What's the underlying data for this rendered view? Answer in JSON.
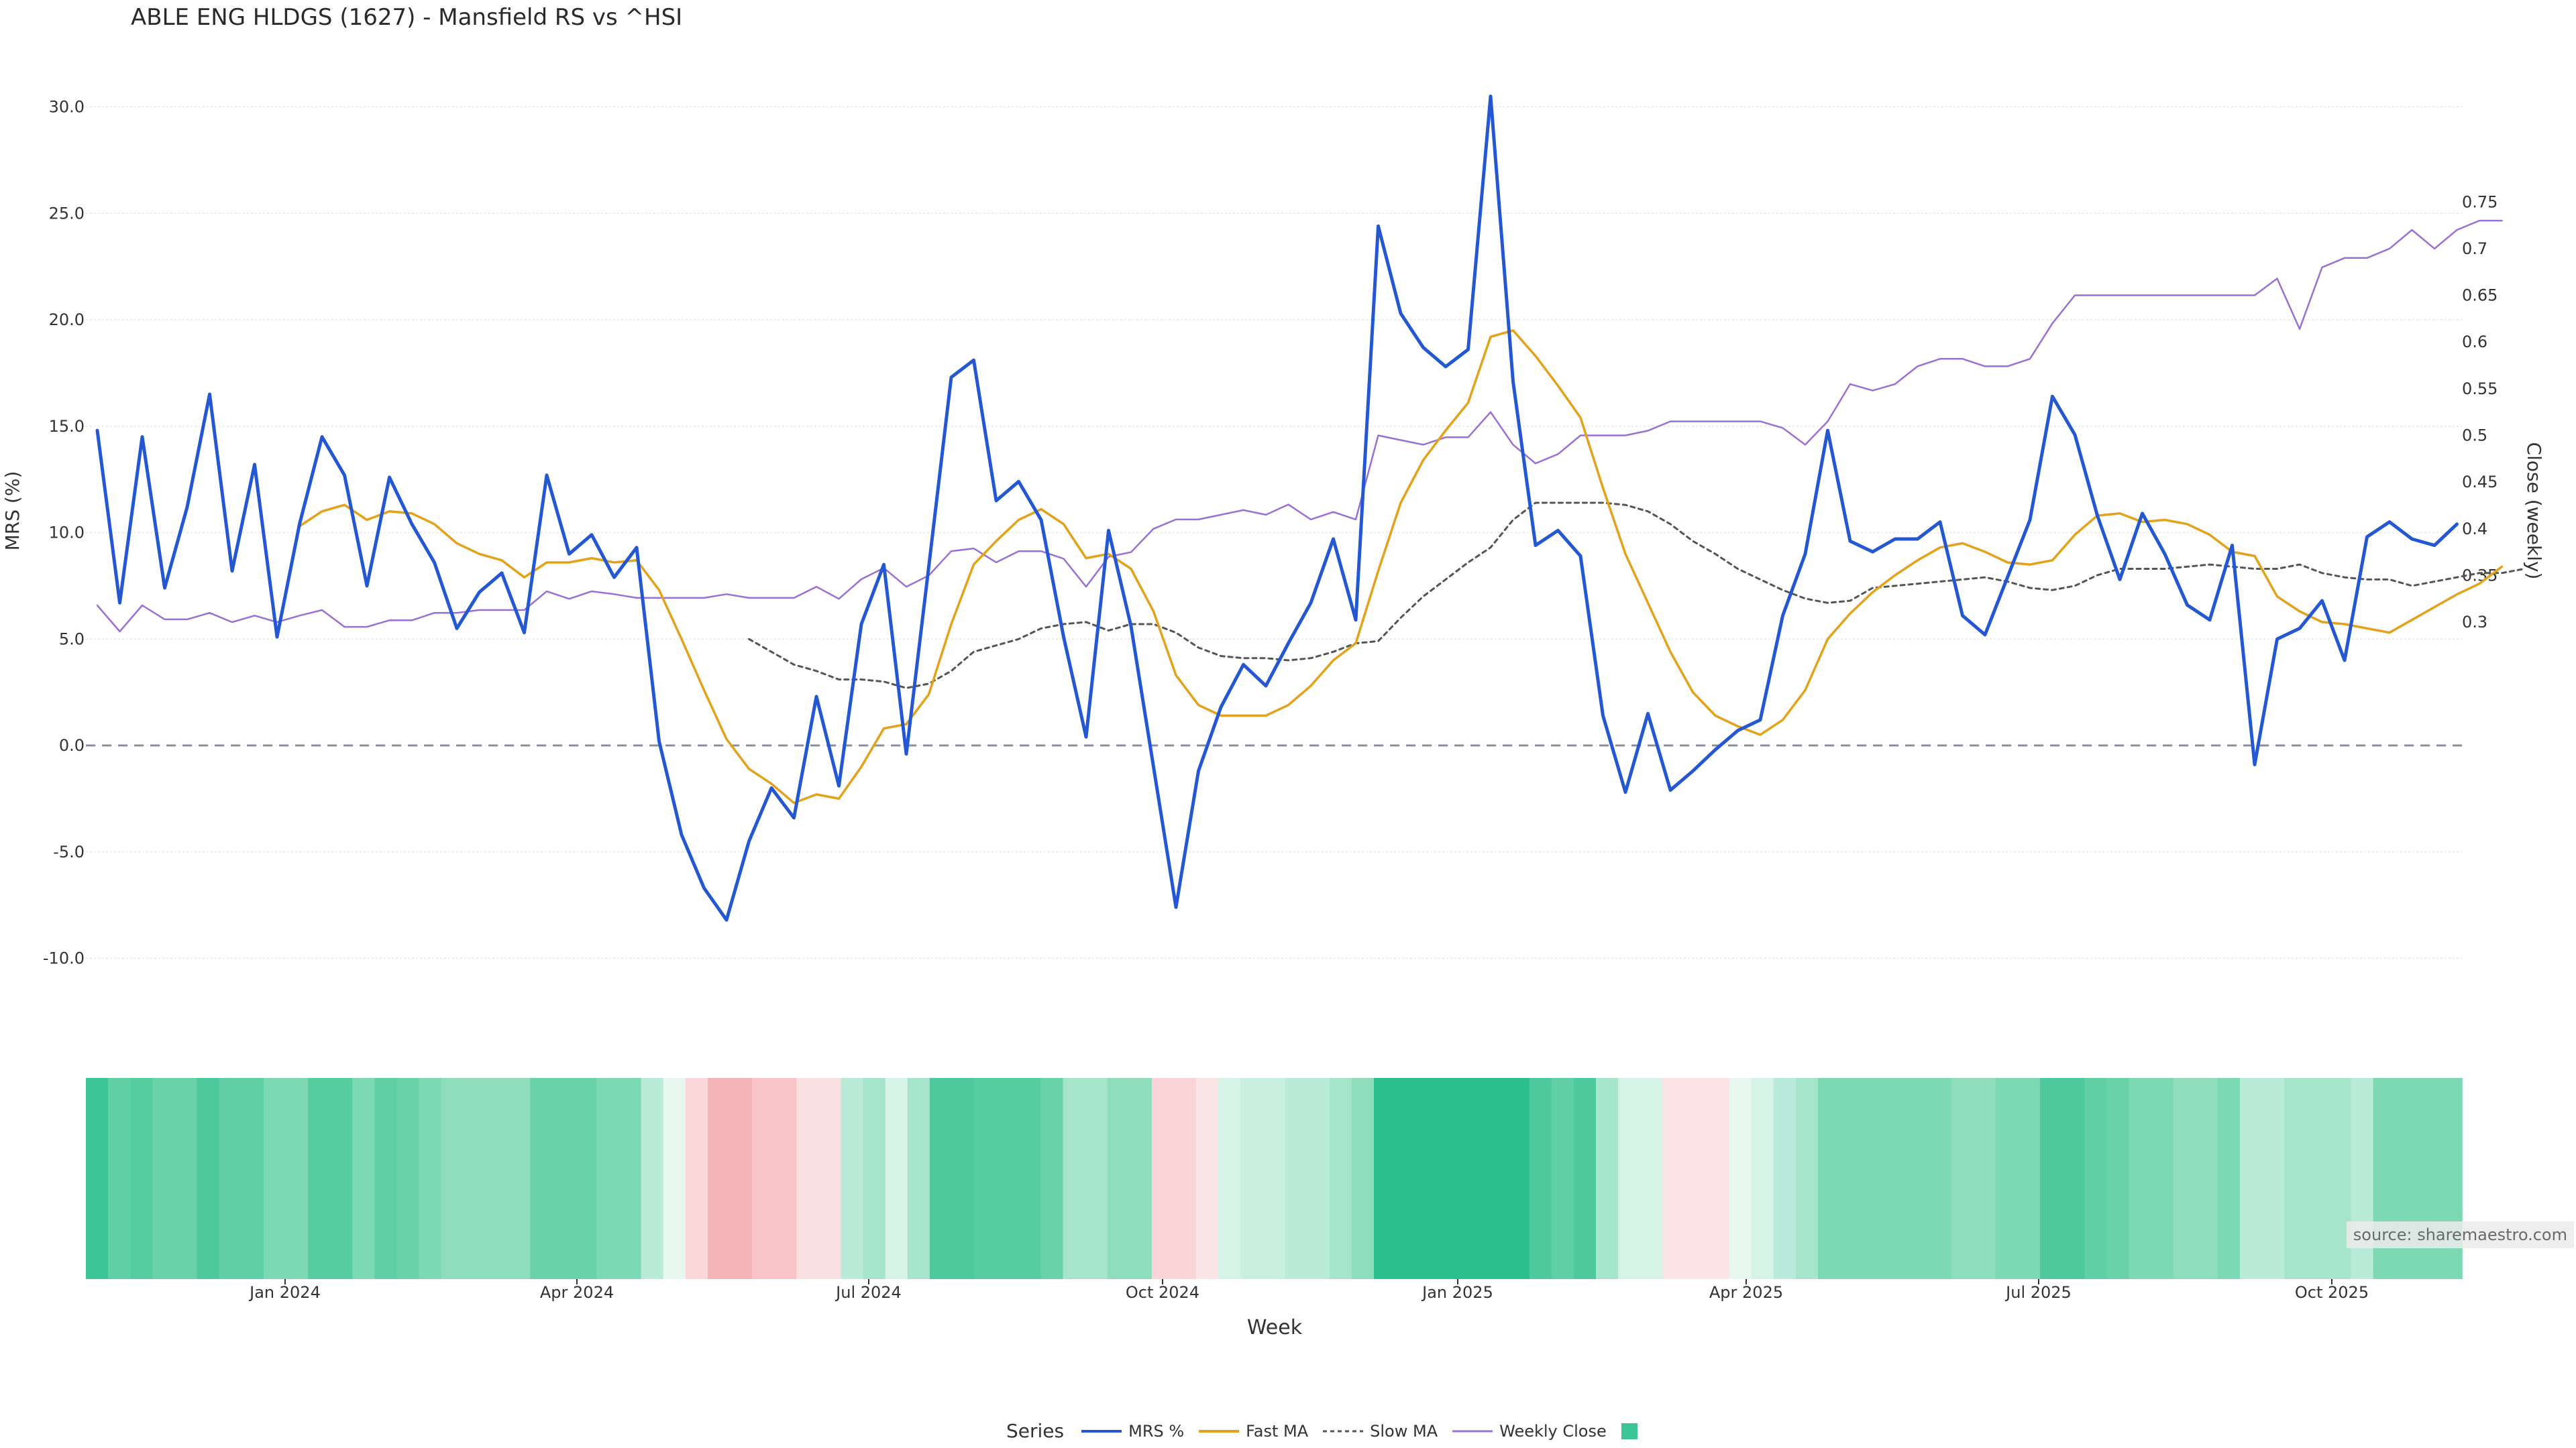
{
  "chart_data": {
    "type": "line",
    "title": "ABLE ENG HLDGS (1627) - Mansfield RS vs ^HSI",
    "xlabel": "Week",
    "ylabel_left": "MRS (%)",
    "ylabel_right": "Close (weekly)",
    "source": "source: sharemaestro.com",
    "ylim_left": [
      -10.0,
      30.0
    ],
    "ylim_right": [
      0.3,
      0.75
    ],
    "left_ticks": [
      "30.0",
      "25.0",
      "20.0",
      "15.0",
      "10.0",
      "5.0",
      "0.0",
      "-5.0",
      "-10.0"
    ],
    "right_ticks": [
      "0.75",
      "0.7",
      "0.65",
      "0.6",
      "0.55",
      "0.5",
      "0.45",
      "0.4",
      "0.35",
      "0.3"
    ],
    "x_ticks": [
      "Jan 2024",
      "Apr 2024",
      "Jul 2024",
      "Oct 2024",
      "Jan 2025",
      "Apr 2025",
      "Jul 2025",
      "Oct 2025"
    ],
    "grid": true,
    "legend_title": "Series",
    "legend_placement": "bottom-center",
    "series": [
      {
        "name": "MRS %",
        "axis": "left",
        "color": "#2458d3",
        "style": "solid",
        "values": [
          14.8,
          6.7,
          14.5,
          7.4,
          11.2,
          16.5,
          8.2,
          13.2,
          5.1,
          10.4,
          14.5,
          12.7,
          7.5,
          12.6,
          10.4,
          8.6,
          5.5,
          7.2,
          8.1,
          5.3,
          12.7,
          9.0,
          9.9,
          7.9,
          9.3,
          0.2,
          -4.2,
          -6.7,
          -8.2,
          -4.5,
          -2.0,
          -3.4,
          2.3,
          -1.9,
          5.7,
          8.5,
          -0.4,
          8.4,
          17.3,
          18.1,
          11.5,
          12.4,
          10.6,
          5.1,
          0.4,
          10.1,
          5.6,
          -1.0,
          -7.6,
          -1.2,
          1.8,
          3.8,
          2.8,
          4.8,
          6.7,
          9.7,
          5.9,
          24.4,
          20.3,
          18.7,
          17.8,
          18.6,
          30.5,
          17.1,
          9.4,
          10.1,
          8.9,
          1.4,
          -2.2,
          1.5,
          -2.1,
          -1.2,
          -0.2,
          0.7,
          1.2,
          6.1,
          9.0,
          14.8,
          9.6,
          9.1,
          9.7,
          9.7,
          10.5,
          6.1,
          5.2,
          7.9,
          10.6,
          16.4,
          14.6,
          10.8,
          7.8,
          10.9,
          9.0,
          6.6,
          5.9,
          9.4,
          -0.9,
          5.0,
          5.5,
          6.8,
          4.0,
          9.8,
          10.5,
          9.7,
          9.4,
          10.4
        ]
      },
      {
        "name": "Fast MA",
        "axis": "left",
        "color": "#e3a21a",
        "style": "solid",
        "start_index": 9,
        "values": [
          10.3,
          11.0,
          11.3,
          10.6,
          11.0,
          10.9,
          10.4,
          9.5,
          9.0,
          8.7,
          7.9,
          8.6,
          8.6,
          8.8,
          8.6,
          8.7,
          7.3,
          5.0,
          2.6,
          0.3,
          -1.1,
          -1.8,
          -2.7,
          -2.3,
          -2.5,
          -1.0,
          0.8,
          1.0,
          2.4,
          5.7,
          8.5,
          9.6,
          10.6,
          11.1,
          10.4,
          8.8,
          9.0,
          8.3,
          6.3,
          3.3,
          1.9,
          1.4,
          1.4,
          1.4,
          1.9,
          2.8,
          4.0,
          4.8,
          8.2,
          11.4,
          13.4,
          14.8,
          16.1,
          19.2,
          19.5,
          18.3,
          16.9,
          15.4,
          12.1,
          9.0,
          6.7,
          4.4,
          2.5,
          1.4,
          0.9,
          0.5,
          1.2,
          2.6,
          5.0,
          6.2,
          7.2,
          8.0,
          8.7,
          9.3,
          9.5,
          9.1,
          8.6,
          8.5,
          8.7,
          9.9,
          10.8,
          10.9,
          10.5,
          10.6,
          10.4,
          9.9,
          9.1,
          8.9,
          7.0,
          6.3,
          5.8,
          5.7,
          5.5,
          5.3,
          5.9,
          6.5,
          7.1,
          7.6,
          8.4
        ]
      },
      {
        "name": "Slow MA",
        "axis": "left",
        "color": "#555555",
        "style": "dashed",
        "start_index": 29,
        "values": [
          5.0,
          4.4,
          3.8,
          3.5,
          3.1,
          3.1,
          3.0,
          2.7,
          2.9,
          3.5,
          4.4,
          4.7,
          5.0,
          5.5,
          5.7,
          5.8,
          5.4,
          5.7,
          5.7,
          5.3,
          4.6,
          4.2,
          4.1,
          4.1,
          4.0,
          4.1,
          4.4,
          4.8,
          4.9,
          6.0,
          7.0,
          7.8,
          8.6,
          9.3,
          10.6,
          11.4,
          11.4,
          11.4,
          11.4,
          11.3,
          11.0,
          10.4,
          9.6,
          9.0,
          8.3,
          7.8,
          7.3,
          6.9,
          6.7,
          6.8,
          7.4,
          7.5,
          7.6,
          7.7,
          7.8,
          7.9,
          7.7,
          7.4,
          7.3,
          7.5,
          8.0,
          8.3,
          8.3,
          8.3,
          8.4,
          8.5,
          8.4,
          8.3,
          8.3,
          8.5,
          8.1,
          7.9,
          7.8,
          7.8,
          7.5,
          7.7,
          7.9,
          8.1,
          8.1,
          8.3
        ]
      },
      {
        "name": "Weekly Close",
        "axis": "right",
        "color": "#9a6fd6",
        "style": "solid",
        "values": [
          0.318,
          0.29,
          0.318,
          0.303,
          0.303,
          0.31,
          0.3,
          0.307,
          0.3,
          0.307,
          0.313,
          0.295,
          0.295,
          0.302,
          0.302,
          0.31,
          0.31,
          0.313,
          0.313,
          0.313,
          0.333,
          0.325,
          0.333,
          0.33,
          0.326,
          0.326,
          0.326,
          0.326,
          0.33,
          0.326,
          0.326,
          0.326,
          0.338,
          0.325,
          0.346,
          0.358,
          0.338,
          0.35,
          0.376,
          0.379,
          0.364,
          0.376,
          0.376,
          0.368,
          0.338,
          0.37,
          0.375,
          0.4,
          0.41,
          0.41,
          0.415,
          0.42,
          0.415,
          0.426,
          0.41,
          0.418,
          0.41,
          0.5,
          0.495,
          0.49,
          0.498,
          0.498,
          0.525,
          0.49,
          0.47,
          0.48,
          0.5,
          0.5,
          0.5,
          0.505,
          0.515,
          0.515,
          0.515,
          0.515,
          0.515,
          0.508,
          0.49,
          0.515,
          0.555,
          0.548,
          0.555,
          0.574,
          0.582,
          0.582,
          0.574,
          0.574,
          0.582,
          0.62,
          0.65,
          0.65,
          0.65,
          0.65,
          0.65,
          0.65,
          0.65,
          0.65,
          0.65,
          0.668,
          0.614,
          0.68,
          0.69,
          0.69,
          0.7,
          0.72,
          0.7,
          0.72,
          0.73,
          0.73
        ]
      }
    ],
    "heat_strip": {
      "description": "weekly MRS-shaded color band under the chart",
      "colors": [
        "#3cc596",
        "#60cfa5",
        "#56cca1",
        "#6ad2a9",
        "#6ad2a9",
        "#4ec99d",
        "#60cfa5",
        "#60cfa5",
        "#7dd8b4",
        "#7dd8b4",
        "#56cca1",
        "#56cca1",
        "#7dd8b4",
        "#60cfa5",
        "#6ad2a9",
        "#7dd8b4",
        "#8fddbd",
        "#8fddbd",
        "#8fddbd",
        "#8fddbd",
        "#6ad2a9",
        "#6ad2a9",
        "#6ad2a9",
        "#7dd8b4",
        "#7dd8b4",
        "#baebd8",
        "#e8f8f1",
        "#fad6d9",
        "#f5b4b8",
        "#f5b4b8",
        "#f8c4c8",
        "#f8c4c8",
        "#fbe0e2",
        "#fbe0e2",
        "#baebd8",
        "#a6e5cc",
        "#d6f3e8",
        "#a6e5cc",
        "#4ec99d",
        "#4ec99d",
        "#56cca1",
        "#56cca1",
        "#56cca1",
        "#6ad2a9",
        "#a6e5cc",
        "#a6e5cc",
        "#8fddbd",
        "#8fddbd",
        "#fbd4d7",
        "#fbd4d7",
        "#fbe6e7",
        "#d6f3e8",
        "#c8efe0",
        "#c8efe0",
        "#baebd8",
        "#baebd8",
        "#a6e5cc",
        "#8fddbd",
        "#2bbf8d",
        "#2bbf8d",
        "#2bbf8d",
        "#2bbf8d",
        "#2bbf8d",
        "#2bbf8d",
        "#2bbf8d",
        "#4ec99d",
        "#60cfa5",
        "#4ec99d",
        "#a6e5cc",
        "#d6f3e8",
        "#d6f3e8",
        "#fde3e5",
        "#fde3e5",
        "#fde3e5",
        "#e8f8f1",
        "#d6f3e8",
        "#b9eadb",
        "#a6e5cc",
        "#7dd8b4",
        "#7dd8b4",
        "#7dd8b4",
        "#7dd8b4",
        "#7dd8b4",
        "#7dd8b4",
        "#8fddbd",
        "#8fddbd",
        "#7dd8b4",
        "#7dd8b4",
        "#4ec99d",
        "#4ec99d",
        "#60cfa5",
        "#6ad2a9",
        "#7dd8b4",
        "#7dd8b4",
        "#8fddbd",
        "#8fddbd",
        "#7dd8b4",
        "#baebd8",
        "#baebd8",
        "#a6e5cc",
        "#a6e5cc",
        "#a6e5cc",
        "#baebd8",
        "#7dd8b4",
        "#7dd8b4",
        "#7dd8b4",
        "#7dd8b4"
      ]
    }
  },
  "legend_swatch_color": "#3cc596"
}
